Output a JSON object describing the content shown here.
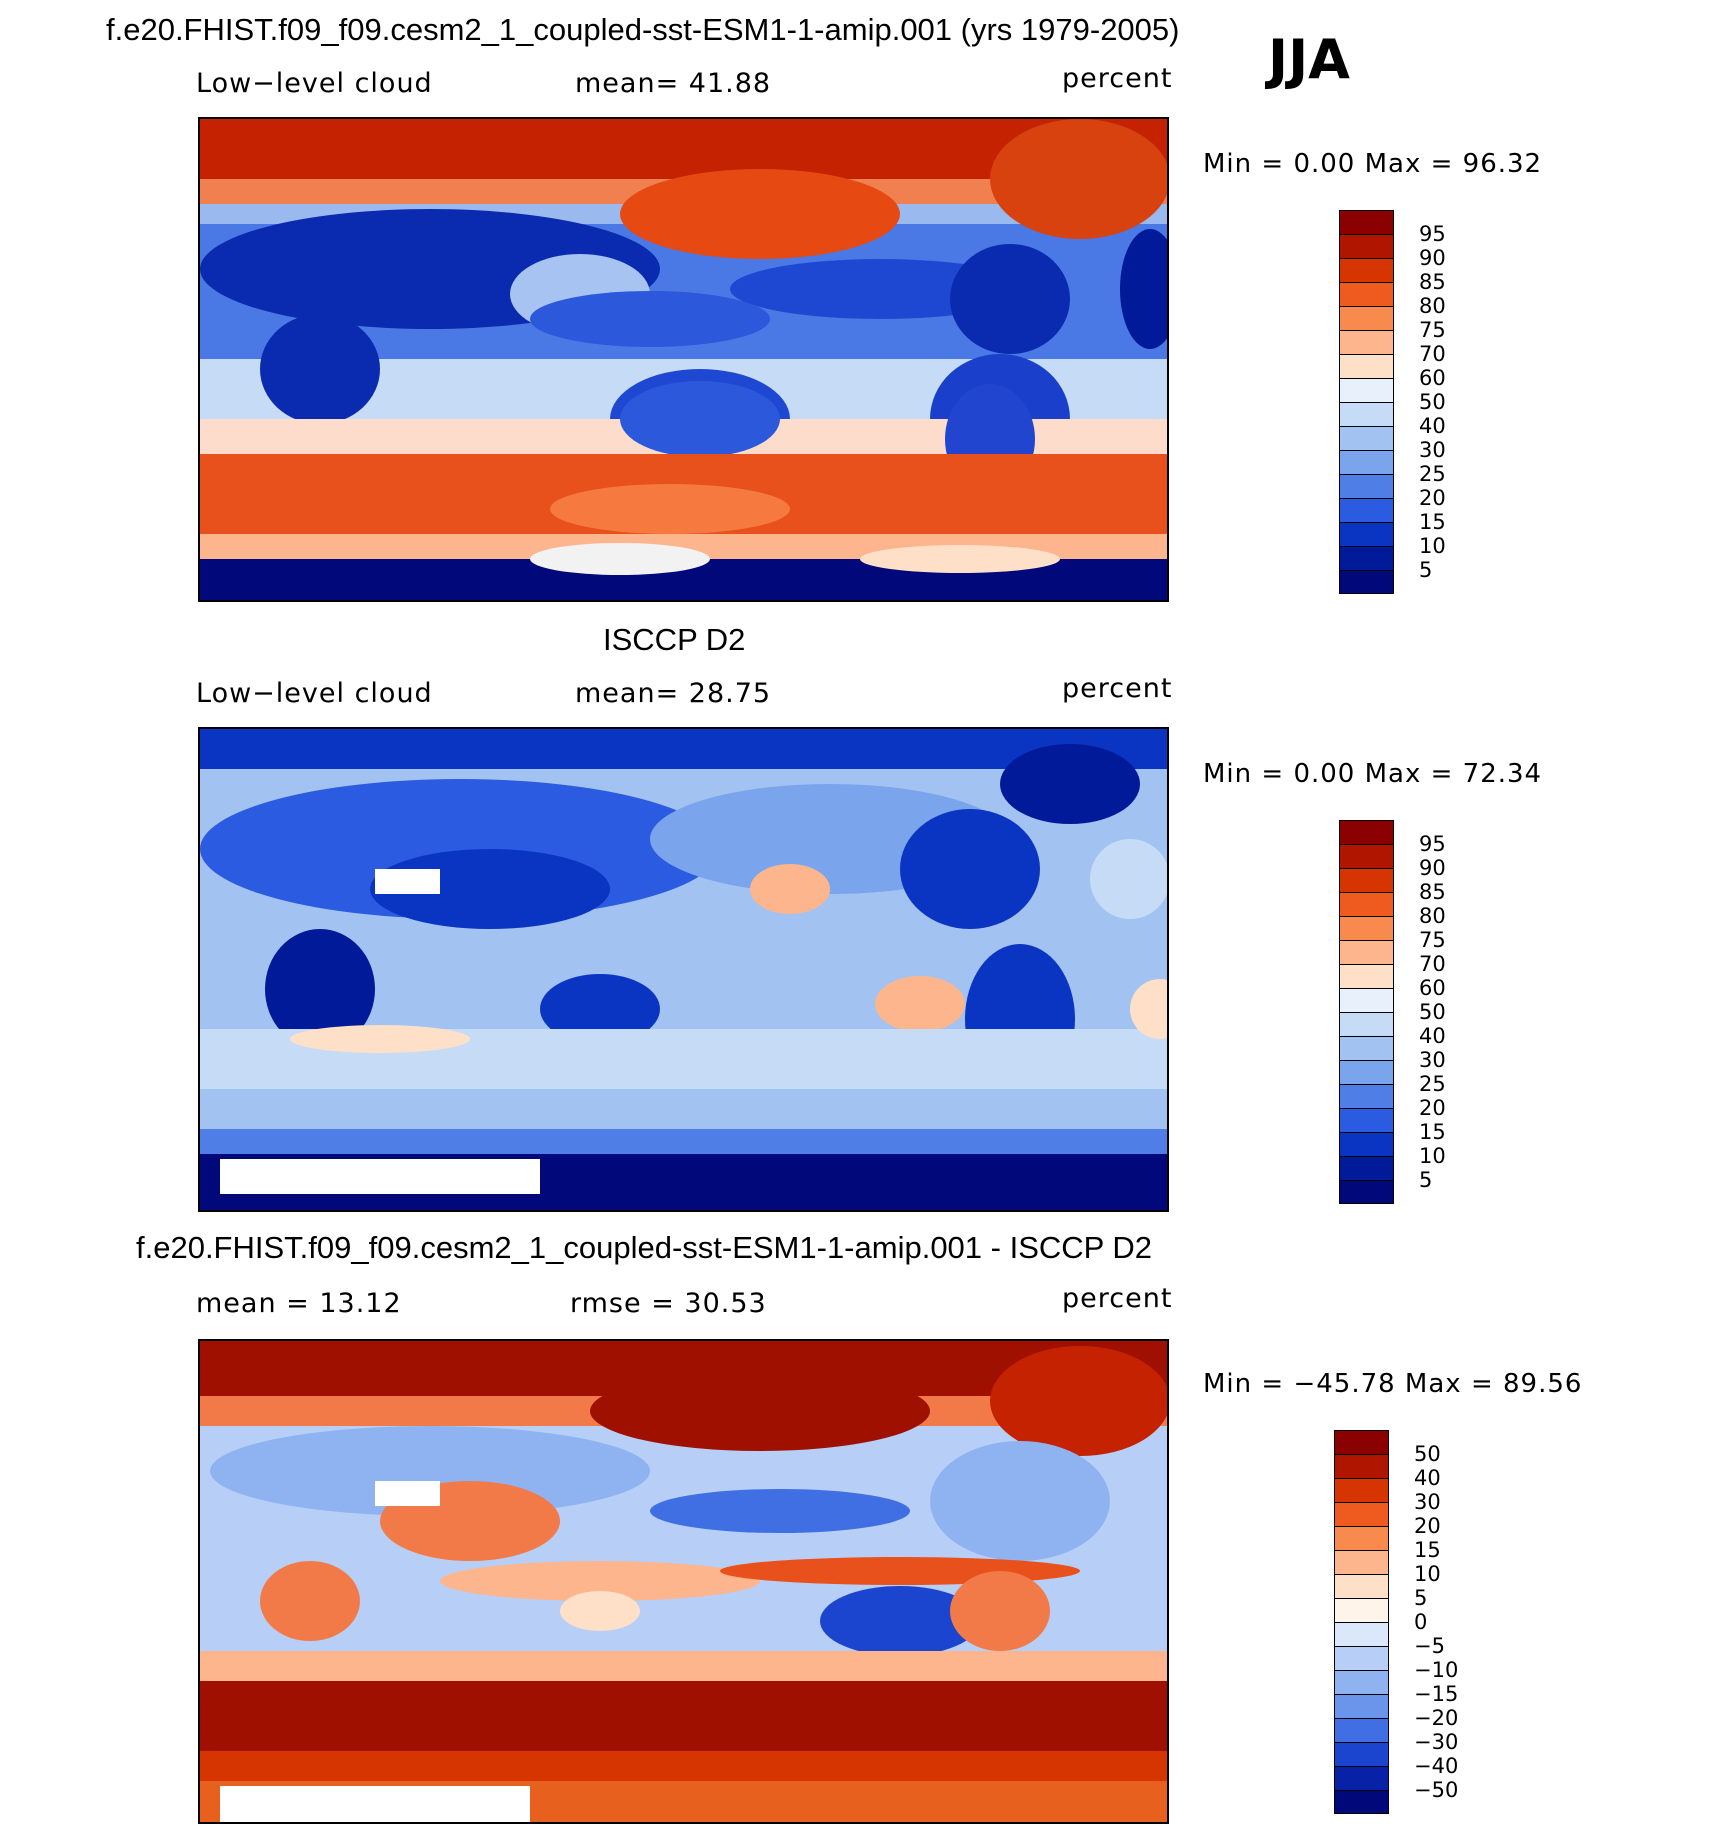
{
  "season": "JJA",
  "panels": [
    {
      "id": "model",
      "heading": "f.e20.FHIST.f09_f09.cesm2_1_coupled-sst-ESM1-1-amip.001 (yrs 1979-2005)",
      "left_label": "Low−level cloud",
      "center_label": "mean=   41.88",
      "units": "percent",
      "minmax": "Min  =     0.00  Max  =    96.32",
      "colorbar": {
        "labels": [
          "95",
          "90",
          "85",
          "80",
          "75",
          "70",
          "60",
          "50",
          "40",
          "30",
          "25",
          "20",
          "15",
          "10",
          "5"
        ],
        "colors": [
          "#8b0000",
          "#b01500",
          "#d63400",
          "#ef5a1f",
          "#f98a4e",
          "#fdb58d",
          "#fee0c8",
          "#e8f0fb",
          "#c6dbf6",
          "#a2c2f1",
          "#7aa5ec",
          "#4f7fe6",
          "#2b5be0",
          "#0a35c2",
          "#001a99",
          "#00087a"
        ]
      }
    },
    {
      "id": "obs",
      "heading": "ISCCP D2",
      "left_label": "Low−level cloud",
      "center_label": "mean=   28.75",
      "units": "percent",
      "minmax": "Min  =     0.00  Max  =    72.34",
      "colorbar": {
        "labels": [
          "95",
          "90",
          "85",
          "80",
          "75",
          "70",
          "60",
          "50",
          "40",
          "30",
          "25",
          "20",
          "15",
          "10",
          "5"
        ],
        "colors": [
          "#8b0000",
          "#b01500",
          "#d63400",
          "#ef5a1f",
          "#f98a4e",
          "#fdb58d",
          "#fee0c8",
          "#e8f0fb",
          "#c6dbf6",
          "#a2c2f1",
          "#7aa5ec",
          "#4f7fe6",
          "#2b5be0",
          "#0a35c2",
          "#001a99",
          "#00087a"
        ]
      }
    },
    {
      "id": "diff",
      "heading": "f.e20.FHIST.f09_f09.cesm2_1_coupled-sst-ESM1-1-amip.001 - ISCCP D2",
      "left_label": "mean  =    13.12",
      "center_label": "rmse  =    30.53",
      "units": "percent",
      "minmax": "Min  = −45.78  Max  =    89.56",
      "colorbar": {
        "labels": [
          "50",
          "40",
          "30",
          "20",
          "15",
          "10",
          "5",
          "0",
          "−5",
          "−10",
          "−15",
          "−20",
          "−30",
          "−40",
          "−50"
        ],
        "colors": [
          "#8b0000",
          "#b01500",
          "#d63400",
          "#ef5a1f",
          "#f98a4e",
          "#fdb58d",
          "#fee0c8",
          "#fff4ea",
          "#dbe7fb",
          "#b7cff6",
          "#8fb3f0",
          "#6a95ea",
          "#3f6fe3",
          "#1c45cf",
          "#0722a6",
          "#00087a"
        ]
      }
    }
  ]
}
